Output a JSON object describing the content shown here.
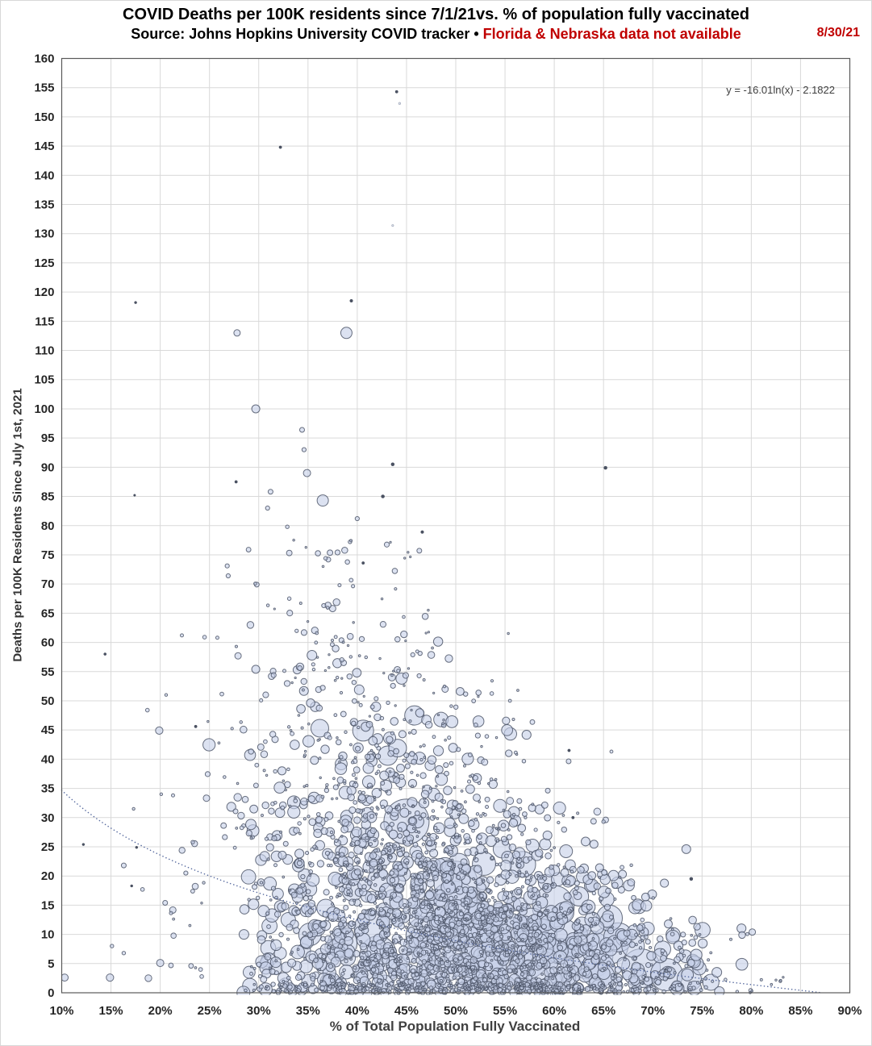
{
  "header": {
    "title": "COVID Deaths per 100K residents since 7/1/21vs. % of population fully vaccinated",
    "subtitle_main": "Source: Johns Hopkins University COVID tracker • ",
    "subtitle_alert": "Florida & Nebraska data not available",
    "date_label": "8/30/21"
  },
  "chart_data": {
    "type": "scatter",
    "subtype": "bubble",
    "title": "COVID Deaths per 100K residents since 7/1/21vs. % of population fully vaccinated",
    "xlabel": "% of Total Population Fully Vaccinated",
    "ylabel": "Deaths per 100K Residents Since July 1st, 2021",
    "xlim": [
      10,
      90
    ],
    "xtick_step": 5,
    "xtick_format": "percent",
    "ylim": [
      0,
      160
    ],
    "ytick_step": 5,
    "grid": true,
    "legend": "none",
    "series_note": "Each bubble is a U.S. county; x = % fully vaccinated, y = COVID deaths per 100K since 7/1/21, bubble size ~ population",
    "annotation": {
      "equation": "y = -16.01ln(x) - 2.1822"
    },
    "trendline": {
      "type": "log",
      "a": -16.01,
      "b": -2.1822,
      "x_domain_pct": [
        10,
        87.3
      ],
      "style": "dotted"
    },
    "notable_points": [
      [
        44.0,
        154.3,
        1.7,
        "d"
      ],
      [
        44.3,
        152.3,
        1.3,
        "f"
      ],
      [
        32.2,
        144.8,
        1.7,
        "d"
      ],
      [
        43.6,
        131.4,
        1.2,
        "f"
      ],
      [
        39.4,
        118.5,
        1.8,
        "d"
      ],
      [
        17.5,
        118.2,
        1.5,
        "d"
      ],
      [
        38.9,
        113.0,
        7
      ],
      [
        27.8,
        113.0,
        4
      ],
      [
        29.7,
        100.0,
        5
      ],
      [
        34.4,
        96.4,
        3
      ],
      [
        34.6,
        93.0,
        2.6
      ],
      [
        34.9,
        89.0,
        4.5
      ],
      [
        43.6,
        90.5,
        2,
        "d"
      ],
      [
        65.2,
        89.9,
        2,
        "d"
      ],
      [
        27.7,
        87.5,
        1.7,
        "d"
      ],
      [
        17.4,
        85.2,
        1.3,
        "d"
      ],
      [
        42.6,
        85.0,
        2,
        "d"
      ],
      [
        36.5,
        84.3,
        7
      ],
      [
        31.2,
        85.8,
        3
      ],
      [
        30.9,
        83.0,
        2.6
      ],
      [
        40.0,
        81.2,
        2.6
      ],
      [
        32.9,
        79.8,
        2.2
      ],
      [
        46.6,
        78.9,
        1.8,
        "d"
      ],
      [
        46.3,
        75.7,
        3
      ],
      [
        40.6,
        73.6,
        1.7,
        "d"
      ],
      [
        26.8,
        73.1,
        2.6
      ],
      [
        26.9,
        71.4,
        2.6
      ],
      [
        29.8,
        69.9,
        3
      ],
      [
        36.6,
        66.3,
        2.6
      ],
      [
        33.1,
        67.5,
        2.2
      ],
      [
        38.2,
        69.8,
        2
      ],
      [
        37.5,
        65.8,
        4
      ],
      [
        14.4,
        58.0,
        1.6,
        "d"
      ],
      [
        10.3,
        2.6,
        4.4
      ],
      [
        14.9,
        2.6,
        4.6
      ],
      [
        18.8,
        2.5,
        4.2
      ],
      [
        20.0,
        5.1,
        4.5
      ],
      [
        15.1,
        8.0,
        2.2
      ],
      [
        16.3,
        6.8,
        2.2
      ],
      [
        12.2,
        25.4,
        1.5,
        "d"
      ],
      [
        17.3,
        31.5,
        1.7
      ],
      [
        17.6,
        24.9,
        1.5,
        "d"
      ],
      [
        16.3,
        21.8,
        3
      ],
      [
        17.1,
        18.3,
        1.5,
        "d"
      ],
      [
        18.2,
        17.7,
        2.3
      ],
      [
        20.5,
        15.4,
        3
      ],
      [
        22.6,
        20.5,
        2.6
      ],
      [
        23.3,
        25.8,
        2.2
      ],
      [
        21.3,
        33.8,
        2
      ],
      [
        20.1,
        34.0,
        1.7
      ],
      [
        19.9,
        44.9,
        4.6
      ],
      [
        23.6,
        45.6,
        1.7,
        "d"
      ],
      [
        18.7,
        48.4,
        2.3
      ],
      [
        20.6,
        51.0,
        1.7
      ],
      [
        22.2,
        61.2,
        2
      ],
      [
        24.5,
        60.9,
        2.3
      ],
      [
        25.8,
        60.8,
        2
      ],
      [
        45.0,
        29.3,
        28
      ],
      [
        50.0,
        18.8,
        27
      ],
      [
        44.1,
        41.9,
        11
      ],
      [
        45.8,
        47.5,
        12
      ],
      [
        40.6,
        44.9,
        13
      ],
      [
        36.2,
        45.3,
        11
      ],
      [
        43.1,
        40.6,
        12
      ],
      [
        48.5,
        46.8,
        9
      ],
      [
        44.5,
        53.8,
        7
      ],
      [
        40.2,
        51.9,
        6
      ],
      [
        35.4,
        57.8,
        6
      ],
      [
        33.9,
        55.3,
        5
      ],
      [
        29.7,
        55.4,
        5
      ],
      [
        27.9,
        57.7,
        4
      ],
      [
        31.3,
        54.2,
        4
      ],
      [
        53.2,
        33.1,
        3
      ],
      [
        55.9,
        30.5,
        1.8
      ],
      [
        54.2,
        26.2,
        2.6
      ],
      [
        56.8,
        22.0,
        16
      ],
      [
        54.7,
        24.6,
        11
      ],
      [
        59.2,
        18.9,
        10
      ],
      [
        61.9,
        21.1,
        4
      ],
      [
        64.6,
        21.4,
        5
      ],
      [
        73.4,
        24.6,
        5.5
      ],
      [
        73.9,
        19.5,
        2,
        "d"
      ],
      [
        80.1,
        10.4,
        4
      ],
      [
        65.0,
        29.3,
        2.2
      ],
      [
        61.5,
        41.5,
        1.7,
        "d"
      ],
      [
        65.8,
        41.3,
        1.9
      ],
      [
        55.5,
        50.0,
        1.9
      ],
      [
        61.9,
        30.0,
        1.7,
        "d"
      ],
      [
        57.8,
        25.2,
        8
      ],
      [
        50.8,
        29.8,
        6
      ],
      [
        48.3,
        33.5,
        5
      ],
      [
        52.0,
        36.8,
        3
      ],
      [
        49.0,
        39.0,
        3
      ],
      [
        39.5,
        17.5,
        13
      ],
      [
        42.2,
        19.3,
        14
      ],
      [
        36.8,
        14.5,
        11
      ],
      [
        43.6,
        16.0,
        12
      ],
      [
        46.2,
        18.2,
        10
      ],
      [
        48.9,
        21.5,
        12
      ],
      [
        56.5,
        7.5,
        40
      ],
      [
        49.8,
        15.0,
        30
      ],
      [
        52.5,
        12.0,
        24
      ],
      [
        60.5,
        9.0,
        28
      ],
      [
        63.5,
        6.5,
        30
      ],
      [
        66.5,
        9.5,
        18
      ],
      [
        61.0,
        4.0,
        22
      ],
      [
        58.0,
        2.5,
        18
      ],
      [
        64.8,
        2.8,
        16
      ],
      [
        53.5,
        4.5,
        20
      ],
      [
        50.5,
        7.0,
        22
      ],
      [
        47.5,
        4.0,
        18
      ],
      [
        45.5,
        2.0,
        14
      ],
      [
        49.0,
        10.0,
        16
      ],
      [
        46.8,
        6.8,
        15
      ],
      [
        44.0,
        4.8,
        13
      ],
      [
        42.8,
        1.5,
        11
      ],
      [
        40.8,
        3.8,
        12
      ],
      [
        39.0,
        6.0,
        10
      ],
      [
        37.0,
        2.0,
        9
      ],
      [
        34.8,
        4.5,
        8
      ],
      [
        32.5,
        2.5,
        7
      ],
      [
        68.8,
        4.2,
        24
      ],
      [
        71.4,
        3.1,
        20
      ],
      [
        73.7,
        2.3,
        15
      ],
      [
        75.9,
        1.8,
        10
      ],
      [
        59.9,
        14.8,
        26
      ],
      [
        65.6,
        12.8,
        16
      ],
      [
        62.5,
        16.5,
        12
      ],
      [
        68.0,
        8.0,
        14
      ],
      [
        69.5,
        11.0,
        8
      ],
      [
        71.0,
        7.5,
        10
      ],
      [
        74.5,
        5.0,
        8
      ],
      [
        76.5,
        3.5,
        6
      ],
      [
        38.5,
        8.5,
        18
      ],
      [
        35.2,
        10.0,
        14
      ],
      [
        41.5,
        11.0,
        22
      ],
      [
        33.0,
        12.5,
        9
      ],
      [
        30.5,
        14.0,
        7
      ],
      [
        28.5,
        10.0,
        6
      ]
    ],
    "cloud_clusters": [
      {
        "name": "floor",
        "count": 240,
        "x": [
          25.5,
          75.5
        ],
        "x_dist": "mix",
        "y": [
          0,
          1.6
        ],
        "y_pow": 1.0,
        "r": [
          1.2,
          3.2
        ],
        "r_pow": 1.2
      },
      {
        "name": "dense-low",
        "count": 640,
        "x": [
          26,
          77
        ],
        "x_dist": "center",
        "y": [
          0,
          6.5
        ],
        "y_pow": 1.1,
        "r": [
          1.3,
          9
        ],
        "r_pow": 2.0
      },
      {
        "name": "dense-low2",
        "count": 520,
        "x": [
          27,
          76
        ],
        "x_dist": "center",
        "y": [
          6.5,
          13
        ],
        "y_pow": 1.05,
        "r": [
          1.3,
          10
        ],
        "r_pow": 2.0
      },
      {
        "name": "mid",
        "count": 520,
        "x": [
          26,
          72
        ],
        "x_dist": "center",
        "y": [
          13,
          22
        ],
        "y_pow": 1.1,
        "r": [
          1.3,
          9
        ],
        "r_pow": 1.9
      },
      {
        "name": "upper",
        "count": 380,
        "x": [
          24,
          66
        ],
        "x_dist": "center",
        "y": [
          22,
          33
        ],
        "y_pow": 1.1,
        "r": [
          1.3,
          8
        ],
        "r_pow": 1.9
      },
      {
        "name": "band33-47",
        "count": 230,
        "x": [
          22,
          62
        ],
        "x_dist": "center",
        "y": [
          33,
          47
        ],
        "y_pow": 1.15,
        "r": [
          1.2,
          8
        ],
        "r_pow": 2.2
      },
      {
        "name": "band47-62",
        "count": 110,
        "x": [
          21,
          58
        ],
        "x_dist": "center",
        "y": [
          47,
          62
        ],
        "y_pow": 1.1,
        "r": [
          1.1,
          6
        ],
        "r_pow": 2.2
      },
      {
        "name": "band62-78",
        "count": 40,
        "x": [
          24,
          50
        ],
        "x_dist": "center",
        "y": [
          62,
          78
        ],
        "y_pow": 1.0,
        "r": [
          1.1,
          4.5
        ],
        "r_pow": 2.0
      },
      {
        "name": "big-low",
        "count": 14,
        "x": [
          40,
          72
        ],
        "x_dist": "center",
        "y": [
          1,
          12
        ],
        "y_pow": 1.0,
        "r": [
          13,
          26
        ],
        "r_pow": 1.3
      },
      {
        "name": "mid-big",
        "count": 9,
        "x": [
          42,
          64
        ],
        "x_dist": "center",
        "y": [
          12,
          24
        ],
        "y_pow": 1.0,
        "r": [
          10,
          17
        ],
        "r_pow": 1.2
      },
      {
        "name": "right",
        "count": 34,
        "x": [
          66,
          81
        ],
        "x_dist": "mix",
        "y": [
          0.5,
          12
        ],
        "y_pow": 1.3,
        "r": [
          1.4,
          9
        ],
        "r_pow": 2.1
      },
      {
        "name": "right-tail",
        "count": 10,
        "x": [
          76,
          86
        ],
        "x_dist": "mix",
        "y": [
          0,
          3
        ],
        "y_pow": 1.2,
        "r": [
          1.1,
          2.4
        ],
        "r_pow": 1.0
      },
      {
        "name": "left",
        "count": 16,
        "x": [
          20.5,
          25.5
        ],
        "x_dist": "mix",
        "y": [
          1,
          28
        ],
        "y_pow": 1.1,
        "r": [
          1.2,
          4.5
        ],
        "r_pow": 2.0
      }
    ],
    "style": {
      "seed": 20210830,
      "bubble_fill": "#c7d1e8",
      "bubble_fill_opacity": 0.62,
      "bubble_stroke": "#4e5668",
      "bubble_stroke_opacity": 0.85,
      "dark_dot_color": "#424a5b",
      "faint_dot_color": "#b9c1d4",
      "grid_color": "#d9d9d9",
      "axis_box_color": "#595959",
      "trend_color": "#56699e",
      "accent_red": "#c00000"
    }
  }
}
